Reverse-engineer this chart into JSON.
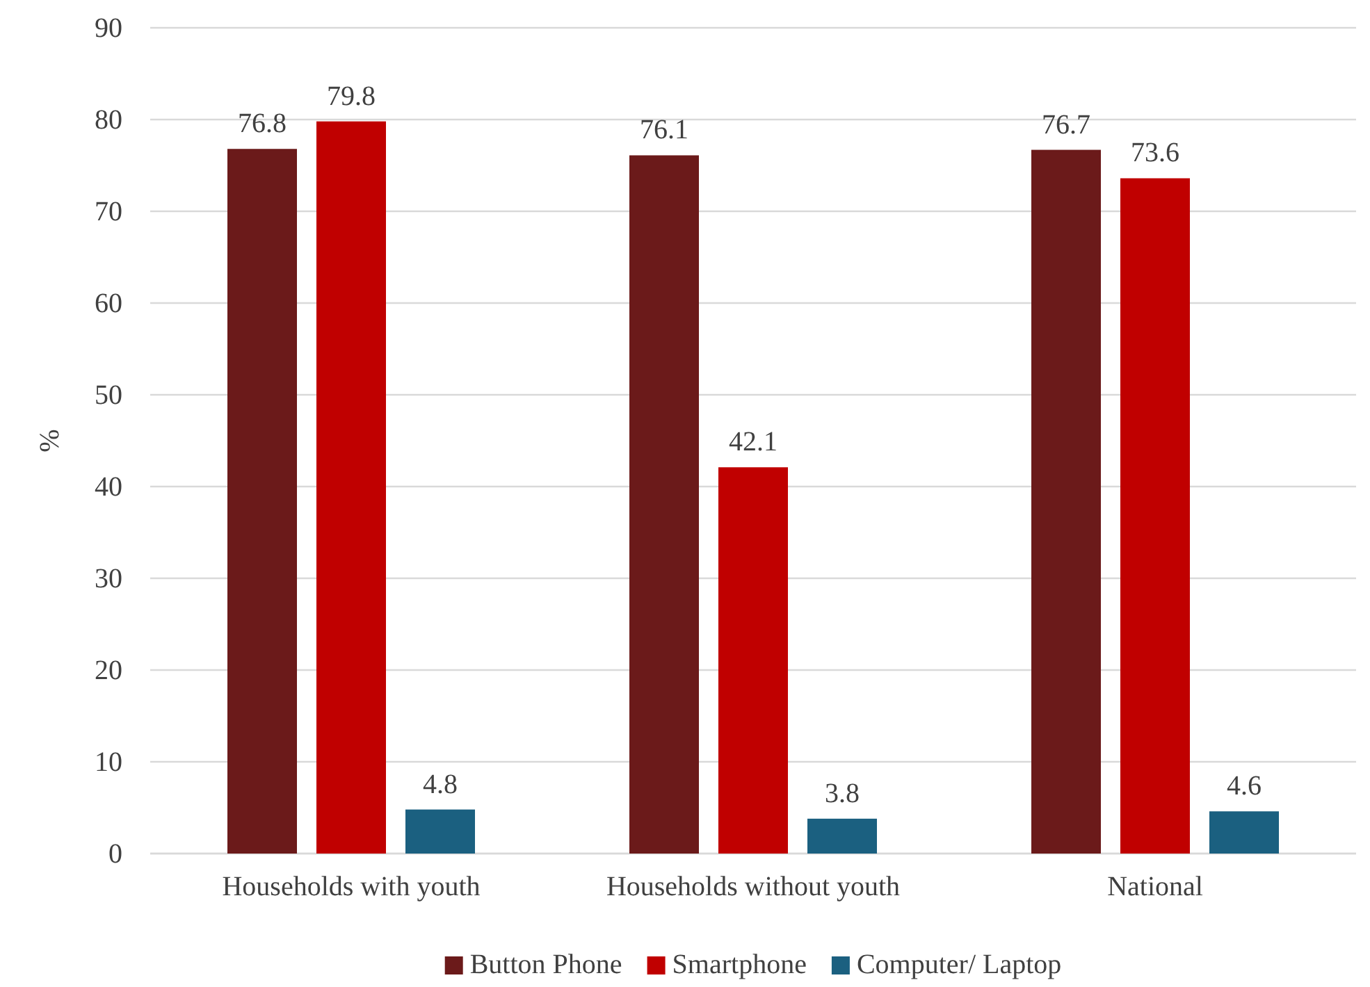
{
  "chart_data": {
    "type": "bar",
    "ylabel": "%",
    "categories": [
      "Households with youth",
      "Households without youth",
      "National"
    ],
    "series": [
      {
        "name": "Button Phone",
        "color": "#6b1a1a",
        "values": [
          76.8,
          76.1,
          76.7
        ]
      },
      {
        "name": "Smartphone",
        "color": "#c00000",
        "values": [
          79.8,
          42.1,
          73.6
        ]
      },
      {
        "name": "Computer/ Laptop",
        "color": "#1b6080",
        "values": [
          4.8,
          3.8,
          4.6
        ]
      }
    ],
    "ylim": [
      0,
      90
    ],
    "yticks": [
      0,
      10,
      20,
      30,
      40,
      50,
      60,
      70,
      80,
      90
    ],
    "grid": "y",
    "legend": "bottom",
    "data_labels": true
  }
}
